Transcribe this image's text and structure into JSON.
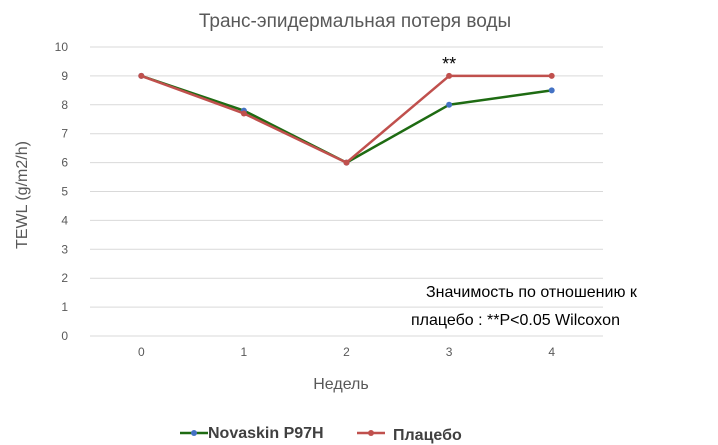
{
  "chart_data": {
    "type": "line",
    "title": "Транс-эпидермальная потеря воды",
    "xlabel": "Недель",
    "ylabel": "TEWL (g/m2/h)",
    "categories": [
      "0",
      "1",
      "2",
      "3",
      "4"
    ],
    "y_ticks": [
      "0",
      "1",
      "2",
      "3",
      "4",
      "5",
      "6",
      "7",
      "8",
      "9",
      "10"
    ],
    "ylim": [
      0,
      10
    ],
    "grid": true,
    "legend_position": "bottom",
    "series": [
      {
        "name": "Novaskin P97H",
        "values": [
          9,
          7.8,
          6,
          8,
          8.5
        ],
        "line_color": "#1e6b12",
        "marker_color": "#4472c4"
      },
      {
        "name": "Плацебо",
        "values": [
          9,
          7.7,
          6,
          9,
          9
        ],
        "line_color": "#c0504d",
        "marker_color": "#c0504d"
      }
    ],
    "annotations": [
      {
        "text": "**",
        "x": "3",
        "y": 9
      }
    ],
    "note_lines": [
      "Значимость по отношению к",
      "плацебо : **P<0.05 Wilcoxon"
    ]
  }
}
